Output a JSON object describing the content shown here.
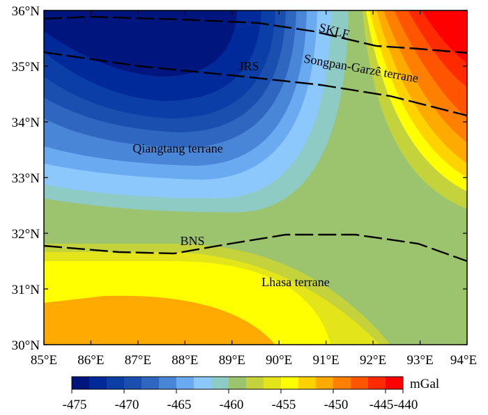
{
  "map": {
    "lon_ticks": [
      "85°E",
      "86°E",
      "87°E",
      "88°E",
      "89°E",
      "90°E",
      "91°E",
      "92°E",
      "93°E",
      "94°E"
    ],
    "lat_ticks": [
      "30°N",
      "31°N",
      "32°N",
      "33°N",
      "34°N",
      "35°N",
      "36°N"
    ],
    "region_labels": {
      "qiangtang": "Qiangtang terrane",
      "songpan": "Songpan-Garzê terrane",
      "lhasa": "Lhasa terrane"
    },
    "fault_labels": {
      "sklf": "SKLF",
      "jrs": "JRS",
      "bns": "BNS"
    }
  },
  "colorbar": {
    "unit": "mGal",
    "tick_labels": [
      "-475",
      "-470",
      "-465",
      "-460",
      "-455",
      "-450",
      "-445",
      "-440"
    ],
    "colors": [
      "#00157e",
      "#00299a",
      "#0b3ea6",
      "#1a4fb0",
      "#2f66bf",
      "#4a86d8",
      "#6aaaf0",
      "#8cc8fc",
      "#8ecbc4",
      "#9cc46e",
      "#c4d23c",
      "#e4e41a",
      "#ffff00",
      "#ffd200",
      "#ffaa00",
      "#ff8000",
      "#ff5500",
      "#ff2a00",
      "#ff0000"
    ]
  }
}
